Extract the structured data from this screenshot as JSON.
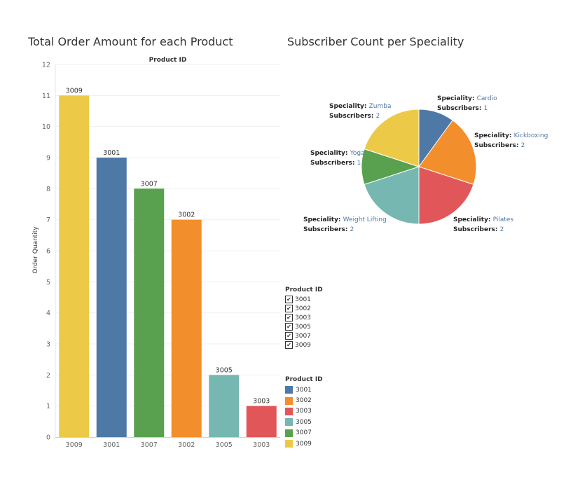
{
  "titles": {
    "bar": "Total Order Amount for each Product",
    "pie": "Subscriber Count per Speciality"
  },
  "chart_data": [
    {
      "type": "bar",
      "title": "Total Order Amount for each Product",
      "header": "Product ID",
      "ylabel": "Order Quantity",
      "ylim": [
        0,
        12
      ],
      "yticks": [
        0,
        1,
        2,
        3,
        4,
        5,
        6,
        7,
        8,
        9,
        10,
        11,
        12
      ],
      "grid": true,
      "categories": [
        "3009",
        "3001",
        "3007",
        "3002",
        "3005",
        "3003"
      ],
      "values": [
        11,
        9,
        8,
        7,
        2,
        1
      ],
      "colors": [
        "#edc948",
        "#4e79a7",
        "#59a14f",
        "#f28e2b",
        "#76b7b2",
        "#e15759"
      ],
      "data_labels": [
        "3009",
        "3001",
        "3007",
        "3002",
        "3005",
        "3003"
      ]
    },
    {
      "type": "pie",
      "title": "Subscriber Count per Speciality",
      "field_label": "Speciality:",
      "value_label": "Subscribers:",
      "slices": [
        {
          "name": "Cardio",
          "value": 1,
          "color": "#4e79a7"
        },
        {
          "name": "Kickboxing",
          "value": 2,
          "color": "#f28e2b"
        },
        {
          "name": "Pilates",
          "value": 2,
          "color": "#e15759"
        },
        {
          "name": "Weight Lifting",
          "value": 2,
          "color": "#76b7b2"
        },
        {
          "name": "Yoga",
          "value": 1,
          "color": "#59a14f"
        },
        {
          "name": "Zumba",
          "value": 2,
          "color": "#edc948"
        }
      ]
    }
  ],
  "filter_legend": {
    "title": "Product ID",
    "items": [
      "3001",
      "3002",
      "3003",
      "3005",
      "3007",
      "3009"
    ],
    "check": "✔"
  },
  "color_legend": {
    "title": "Product ID",
    "items": [
      {
        "label": "3001",
        "color": "#4e79a7"
      },
      {
        "label": "3002",
        "color": "#f28e2b"
      },
      {
        "label": "3003",
        "color": "#e15759"
      },
      {
        "label": "3005",
        "color": "#76b7b2"
      },
      {
        "label": "3007",
        "color": "#59a14f"
      },
      {
        "label": "3009",
        "color": "#edc948"
      }
    ]
  }
}
